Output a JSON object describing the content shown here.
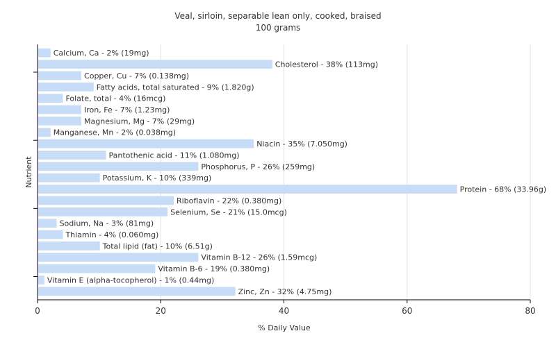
{
  "chart_data": {
    "type": "bar",
    "orientation": "horizontal",
    "title": "Veal, sirloin, separable lean only, cooked, braised",
    "subtitle": "100 grams",
    "xlabel": "% Daily Value",
    "ylabel": "Nutrient",
    "xlim": [
      0,
      80
    ],
    "xticks": [
      0,
      20,
      40,
      60,
      80
    ],
    "grid": true,
    "bar_color": "#c6dcf7",
    "categories": [
      "Calcium, Ca",
      "Cholesterol",
      "Copper, Cu",
      "Fatty acids, total saturated",
      "Folate, total",
      "Iron, Fe",
      "Magnesium, Mg",
      "Manganese, Mn",
      "Niacin",
      "Pantothenic acid",
      "Phosphorus, P",
      "Potassium, K",
      "Protein",
      "Riboflavin",
      "Selenium, Se",
      "Sodium, Na",
      "Thiamin",
      "Total lipid (fat)",
      "Vitamin B-12",
      "Vitamin B-6",
      "Vitamin E (alpha-tocopherol)",
      "Zinc, Zn"
    ],
    "values": [
      2,
      38,
      7,
      9,
      4,
      7,
      7,
      2,
      35,
      11,
      26,
      10,
      68,
      22,
      21,
      3,
      4,
      10,
      26,
      19,
      1,
      32
    ],
    "labels": [
      "Calcium, Ca - 2% (19mg)",
      "Cholesterol - 38% (113mg)",
      "Copper, Cu - 7% (0.138mg)",
      "Fatty acids, total saturated - 9% (1.820g)",
      "Folate, total - 4% (16mcg)",
      "Iron, Fe - 7% (1.23mg)",
      "Magnesium, Mg - 7% (29mg)",
      "Manganese, Mn - 2% (0.038mg)",
      "Niacin - 35% (7.050mg)",
      "Pantothenic acid - 11% (1.080mg)",
      "Phosphorus, P - 26% (259mg)",
      "Potassium, K - 10% (339mg)",
      "Protein - 68% (33.96g)",
      "Riboflavin - 22% (0.380mg)",
      "Selenium, Se - 21% (15.0mcg)",
      "Sodium, Na - 3% (81mg)",
      "Thiamin - 4% (0.060mg)",
      "Total lipid (fat) - 10% (6.51g)",
      "Vitamin B-12 - 26% (1.59mcg)",
      "Vitamin B-6 - 19% (0.380mg)",
      "Vitamin E (alpha-tocopherol) - 1% (0.44mg)",
      "Zinc, Zn - 32% (4.75mg)"
    ]
  }
}
